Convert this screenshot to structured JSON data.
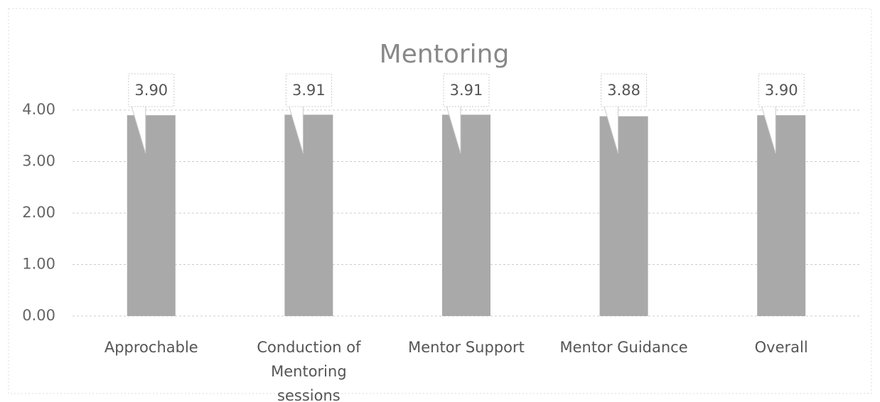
{
  "chart_data": {
    "type": "bar",
    "title": "Mentoring",
    "categories": [
      "Approchable",
      "Conduction of Mentoring sessions",
      "Mentor Support",
      "Mentor Guidance",
      "Overall"
    ],
    "values": [
      3.9,
      3.91,
      3.91,
      3.88,
      3.9
    ],
    "value_labels": [
      "3.90",
      "3.91",
      "3.91",
      "3.88",
      "3.90"
    ],
    "color": "#a9a9a9",
    "ylim": [
      0,
      4
    ],
    "yticks": [
      {
        "value": 0,
        "label": "0.00"
      },
      {
        "value": 1,
        "label": "1.00"
      },
      {
        "value": 2,
        "label": "2.00"
      },
      {
        "value": 3,
        "label": "3.00"
      },
      {
        "value": 4,
        "label": "4.00"
      }
    ],
    "grid": true
  }
}
